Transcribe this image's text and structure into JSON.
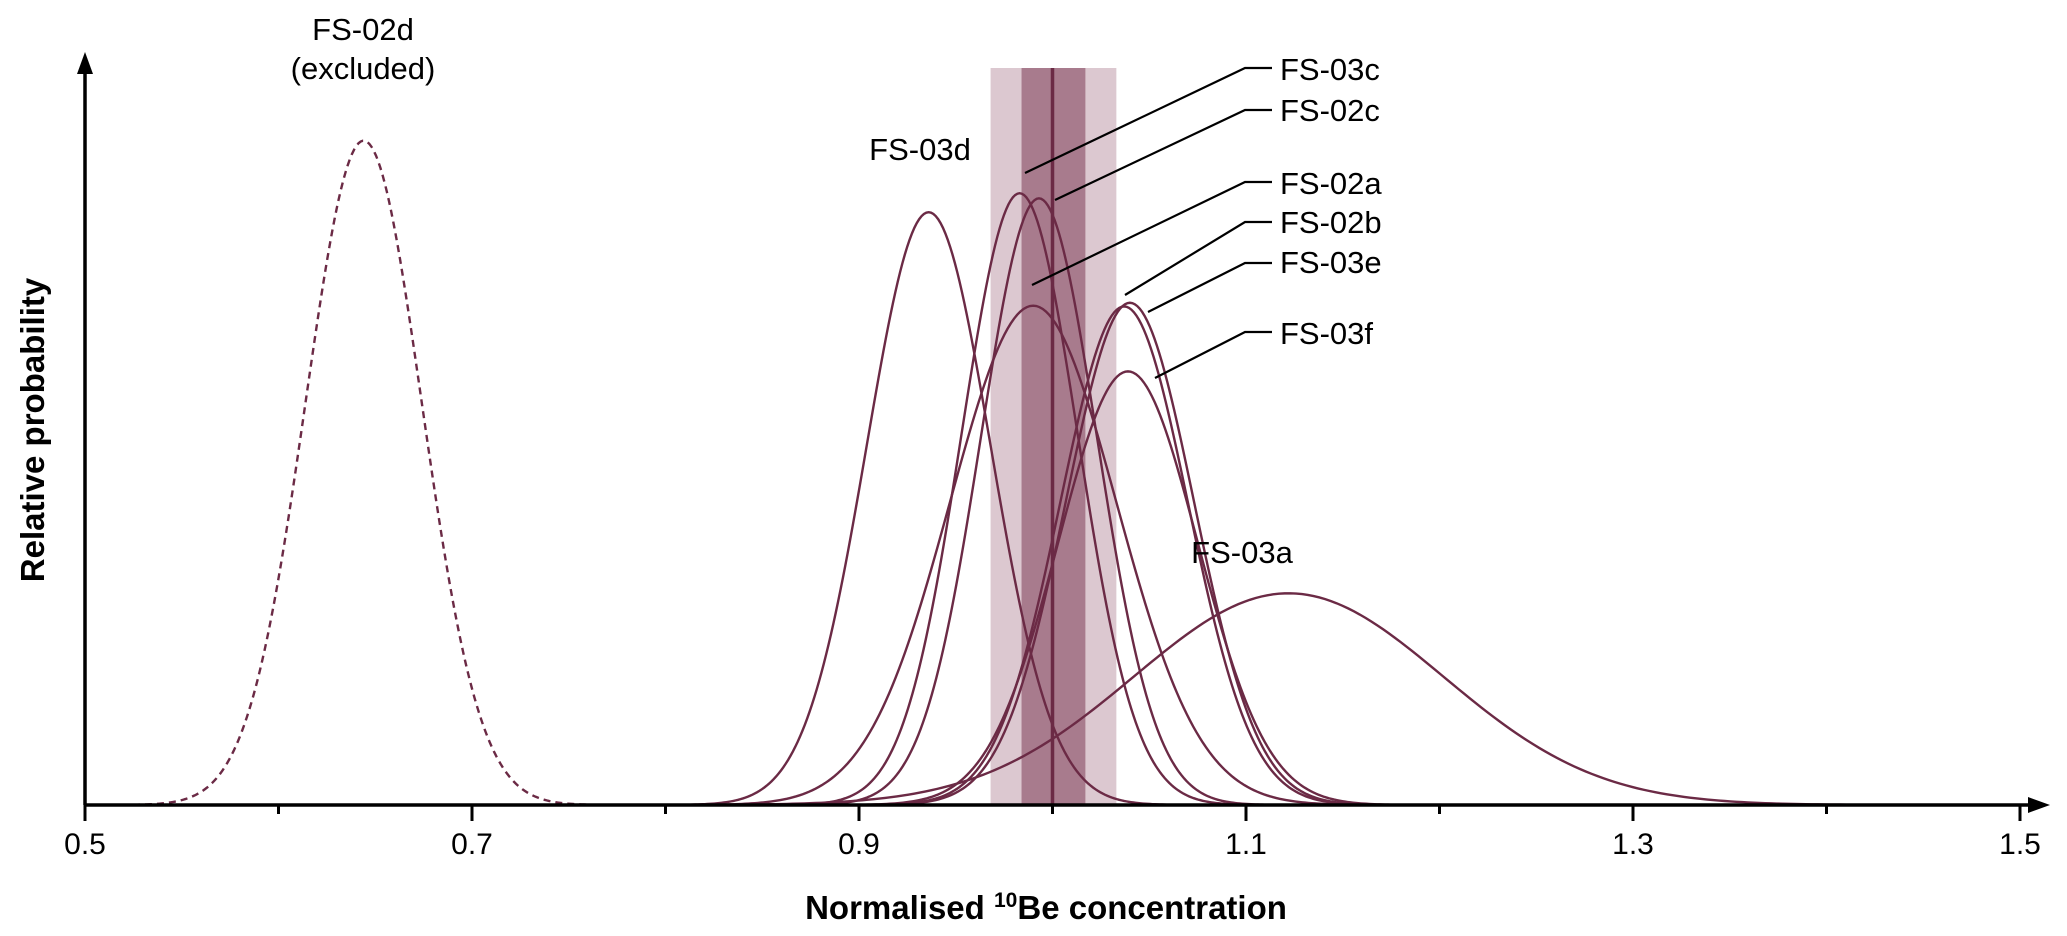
{
  "chart_data": {
    "type": "line",
    "title": "",
    "xlabel_main": "Normalised ",
    "xlabel_superscript": "10",
    "xlabel_tail": "Be concentration",
    "ylabel": "Relative probability",
    "xlim": [
      0.5,
      1.5
    ],
    "ylim": [
      0,
      1.0
    ],
    "x_ticks": [
      0.5,
      0.7,
      0.9,
      1.1,
      1.3,
      1.5
    ],
    "x_tick_labels": [
      "0.5",
      "0.7",
      "0.9",
      "1.1",
      "1.3",
      "1.5"
    ],
    "x_minor_ticks": [
      0.6,
      0.8,
      1.0,
      1.2,
      1.4
    ],
    "colors": {
      "curve": "#6b2a45",
      "band_outer": "#dcc8d0",
      "band_inner": "#a87b8d",
      "mean_line": "#6b2a45"
    },
    "weighted_mean": {
      "value": 1.0,
      "inner_range": [
        0.984,
        1.017
      ],
      "outer_range": [
        0.968,
        1.033
      ]
    },
    "series": [
      {
        "name": "FS-02d",
        "label_lines": [
          "FS-02d",
          "(excluded)"
        ],
        "mean": 0.644,
        "sd": 0.03,
        "peak": 0.91,
        "excluded": true
      },
      {
        "name": "FS-03d",
        "label_lines": [
          "FS-03d"
        ],
        "mean": 0.936,
        "sd": 0.032,
        "peak": 0.812,
        "excluded": false
      },
      {
        "name": "FS-03c",
        "label_lines": [
          "FS-03c"
        ],
        "mean": 0.983,
        "sd": 0.03,
        "peak": 0.838,
        "excluded": false
      },
      {
        "name": "FS-02c",
        "label_lines": [
          "FS-02c"
        ],
        "mean": 0.993,
        "sd": 0.03,
        "peak": 0.831,
        "excluded": false
      },
      {
        "name": "FS-02a",
        "label_lines": [
          "FS-02a"
        ],
        "mean": 0.99,
        "sd": 0.043,
        "peak": 0.684,
        "excluded": false
      },
      {
        "name": "FS-02b",
        "label_lines": [
          "FS-02b"
        ],
        "mean": 1.037,
        "sd": 0.033,
        "peak": 0.683,
        "excluded": false
      },
      {
        "name": "FS-03e",
        "label_lines": [
          "FS-03e"
        ],
        "mean": 1.04,
        "sd": 0.033,
        "peak": 0.688,
        "excluded": false
      },
      {
        "name": "FS-03f",
        "label_lines": [
          "FS-03f"
        ],
        "mean": 1.039,
        "sd": 0.036,
        "peak": 0.594,
        "excluded": false
      },
      {
        "name": "FS-03a",
        "label_lines": [
          "FS-03a"
        ],
        "mean": 1.122,
        "sd": 0.08,
        "peak": 0.29,
        "excluded": false
      }
    ]
  }
}
